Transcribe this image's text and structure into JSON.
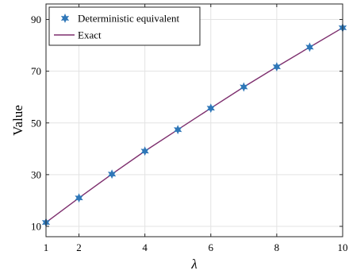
{
  "chart_data": {
    "type": "line",
    "title": "",
    "xlabel": "λ",
    "ylabel": "Value",
    "xlim": [
      1,
      10
    ],
    "ylim": [
      6,
      96
    ],
    "x_ticks": [
      2,
      4,
      6,
      8,
      10
    ],
    "y_ticks": [
      10,
      30,
      50,
      70,
      90
    ],
    "grid": true,
    "legend_position": "top-left",
    "series": [
      {
        "name": "Deterministic equivalent",
        "kind": "markers",
        "marker": "hexagram",
        "color": "#2f77b8",
        "x": [
          1,
          2,
          3,
          4,
          5,
          6,
          7,
          8,
          9,
          10
        ],
        "y": [
          11.5,
          21.0,
          30.2,
          39.1,
          47.4,
          55.7,
          63.9,
          71.7,
          79.3,
          86.8
        ]
      },
      {
        "name": "Exact",
        "kind": "line",
        "color": "#7e2f6e",
        "x": [
          1,
          2,
          3,
          4,
          5,
          6,
          7,
          8,
          9,
          10
        ],
        "y": [
          11.5,
          21.0,
          30.2,
          39.1,
          47.4,
          55.7,
          63.9,
          71.7,
          79.3,
          86.8
        ]
      }
    ]
  }
}
